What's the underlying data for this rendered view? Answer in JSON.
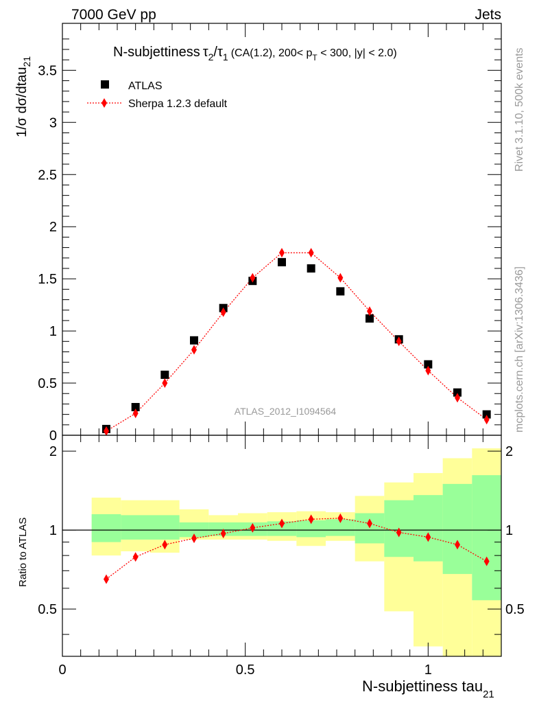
{
  "header": {
    "energy_label": "7000 GeV pp",
    "category_label": "Jets",
    "rivet_label": "Rivet 3.1.10,  500k events",
    "mcplots_label": "mcplots.cern.ch [arXiv:1306.3436]",
    "analysis_label": "ATLAS_2012_I1094564"
  },
  "title_parts": {
    "name": "N-subjettiness",
    "tau": "τ",
    "sub2": "2",
    "slash": "/",
    "sub1": "1",
    "cond_a": "(CA(1.2), 200< p",
    "cond_sub": "T",
    "cond_b": " < 300, |y| < 2.0)"
  },
  "colors": {
    "data": "#000000",
    "mc": "#ff0000",
    "band_inner": "#99ff99",
    "band_outer": "#ffff99"
  },
  "chart_data": [
    {
      "type": "scatter",
      "panel": "main",
      "ylabel": "1/σ dσ/dtau",
      "ylabel_sub": "21",
      "xlim": [
        0,
        1.2
      ],
      "ylim": [
        0,
        3.95
      ],
      "xticks": [
        0,
        0.5,
        1
      ],
      "yticks": [
        0,
        0.5,
        1,
        1.5,
        2,
        2.5,
        3,
        3.5
      ],
      "ytick_labels": [
        "0",
        "0.5",
        "1",
        "1.5",
        "2",
        "2.5",
        "3",
        "3.5"
      ],
      "legend_position": "top-left",
      "series": [
        {
          "name": "ATLAS",
          "marker": "square",
          "x": [
            0.12,
            0.2,
            0.28,
            0.36,
            0.44,
            0.52,
            0.6,
            0.68,
            0.76,
            0.84,
            0.92,
            1.0,
            1.08,
            1.16
          ],
          "y": [
            0.06,
            0.27,
            0.58,
            0.91,
            1.22,
            1.48,
            1.66,
            1.6,
            1.38,
            1.12,
            0.92,
            0.68,
            0.41,
            0.2
          ]
        },
        {
          "name": "Sherpa 1.2.3 default",
          "marker": "diamond",
          "line": "dotted",
          "x": [
            0.12,
            0.2,
            0.28,
            0.36,
            0.44,
            0.52,
            0.6,
            0.68,
            0.76,
            0.84,
            0.92,
            1.0,
            1.08,
            1.16
          ],
          "y": [
            0.04,
            0.21,
            0.5,
            0.82,
            1.18,
            1.51,
            1.75,
            1.75,
            1.51,
            1.19,
            0.9,
            0.62,
            0.36,
            0.15
          ]
        }
      ]
    },
    {
      "type": "line",
      "panel": "ratio",
      "xlabel": "N-subjettiness tau",
      "xlabel_sub": "21",
      "ylabel": "Ratio to ATLAS",
      "xlim": [
        0,
        1.2
      ],
      "ylim": [
        0.33,
        2.3
      ],
      "xticks": [
        0,
        0.5,
        1
      ],
      "xtick_labels": [
        "0",
        "0.5",
        "1"
      ],
      "yticks": [
        0.5,
        1,
        2
      ],
      "ytick_labels": [
        "0.5",
        "1",
        "2"
      ],
      "band_edges": [
        0.08,
        0.16,
        0.24,
        0.32,
        0.4,
        0.48,
        0.56,
        0.64,
        0.72,
        0.8,
        0.88,
        0.96,
        1.04,
        1.12,
        1.2
      ],
      "band_inner_low": [
        0.9,
        0.92,
        0.92,
        0.94,
        0.95,
        0.95,
        0.95,
        0.94,
        0.95,
        0.89,
        0.79,
        0.76,
        0.68,
        0.54
      ],
      "band_inner_high": [
        1.15,
        1.14,
        1.14,
        1.07,
        1.07,
        1.07,
        1.08,
        1.09,
        1.1,
        1.16,
        1.3,
        1.36,
        1.5,
        1.62
      ],
      "band_outer_low": [
        0.8,
        0.83,
        0.82,
        0.92,
        0.92,
        0.92,
        0.91,
        0.87,
        0.91,
        0.76,
        0.49,
        0.36,
        0.33,
        0.33
      ],
      "band_outer_high": [
        1.33,
        1.3,
        1.3,
        1.2,
        1.14,
        1.16,
        1.17,
        1.18,
        1.17,
        1.35,
        1.52,
        1.65,
        1.88,
        2.05
      ],
      "series": [
        {
          "name": "Sherpa 1.2.3 default",
          "x": [
            0.12,
            0.2,
            0.28,
            0.36,
            0.44,
            0.52,
            0.6,
            0.68,
            0.76,
            0.84,
            0.92,
            1.0,
            1.08,
            1.16
          ],
          "y": [
            0.65,
            0.79,
            0.88,
            0.93,
            0.97,
            1.02,
            1.06,
            1.1,
            1.11,
            1.06,
            0.98,
            0.94,
            0.88,
            0.76
          ]
        }
      ]
    }
  ]
}
